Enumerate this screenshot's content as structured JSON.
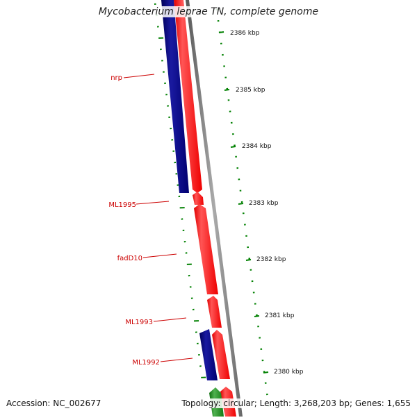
{
  "title": "Mycobacterium leprae TN, complete genome",
  "accession": "Accession: NC_002677",
  "summary": "Topology: circular; Length: 3,268,203 bp; Genes: 1,655",
  "ticks": [
    "2386 kbp",
    "2385 kbp",
    "2384 kbp",
    "2383 kbp",
    "2382 kbp",
    "2381 kbp",
    "2380 kbp"
  ],
  "gene_labels": [
    "nrp",
    "ML1995",
    "fadD10",
    "ML1993",
    "ML1992"
  ],
  "colors": {
    "forward_cds": "#ff0000",
    "reverse_cds": "#000080",
    "backbone": "#808080",
    "tick_marks": "#008000",
    "label_red": "#cc0000",
    "green_feature": "#1a8a1a"
  }
}
